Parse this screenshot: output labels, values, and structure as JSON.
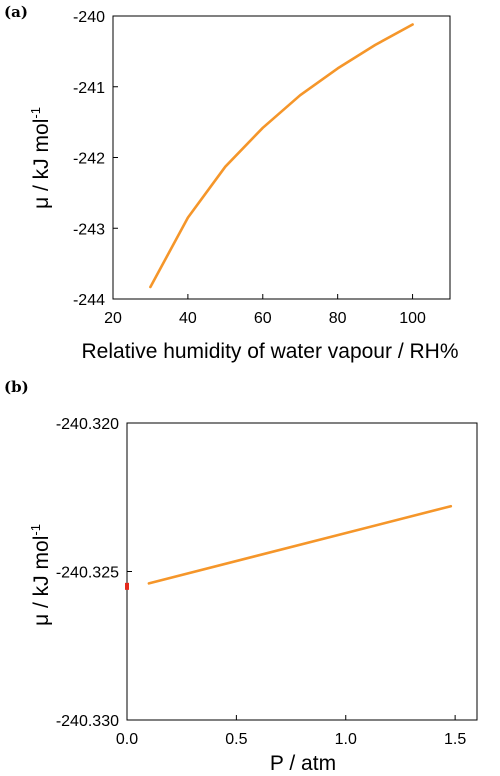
{
  "chart_data": [
    {
      "panel_label": "(a)",
      "type": "line",
      "xlabel": "Relative humidity of water vapour / RH%",
      "ylabel_main": "μ / kJ mol",
      "ylabel_sup": "-1",
      "xlim": [
        20,
        110
      ],
      "ylim": [
        -244,
        -240
      ],
      "xticks": [
        20,
        40,
        60,
        80,
        100
      ],
      "yticks": [
        -244,
        -243,
        -242,
        -241,
        -240
      ],
      "xtick_labels": [
        "20",
        "40",
        "60",
        "80",
        "100"
      ],
      "ytick_labels": [
        "-244",
        "-243",
        "-242",
        "-241",
        "-240"
      ],
      "grid": false,
      "series": [
        {
          "color": "#f5962a",
          "x": [
            30,
            40,
            50,
            60,
            70,
            80,
            90,
            100
          ],
          "y": [
            -243.83,
            -242.85,
            -242.13,
            -241.58,
            -241.12,
            -240.74,
            -240.41,
            -240.12
          ]
        }
      ]
    },
    {
      "panel_label": "(b)",
      "type": "line",
      "xlabel": "P / atm",
      "ylabel_main": "μ / kJ mol",
      "ylabel_sup": "-1",
      "xlim": [
        0,
        1.6
      ],
      "ylim": [
        -240.33,
        -240.32
      ],
      "xticks": [
        0,
        0.5,
        1.0,
        1.5
      ],
      "yticks": [
        -240.33,
        -240.325,
        -240.32
      ],
      "xtick_labels": [
        "0.0",
        "0.5",
        "1.0",
        "1.5"
      ],
      "ytick_labels": [
        "-240.330",
        "-240.325",
        "-240.320"
      ],
      "grid": false,
      "marker_color": "#e52a1d",
      "marker_point": {
        "x": 0.0,
        "y": -240.3255
      },
      "series": [
        {
          "color": "#f5962a",
          "x": [
            0.1,
            1.48
          ],
          "y": [
            -240.3254,
            -240.3228
          ]
        }
      ]
    }
  ]
}
